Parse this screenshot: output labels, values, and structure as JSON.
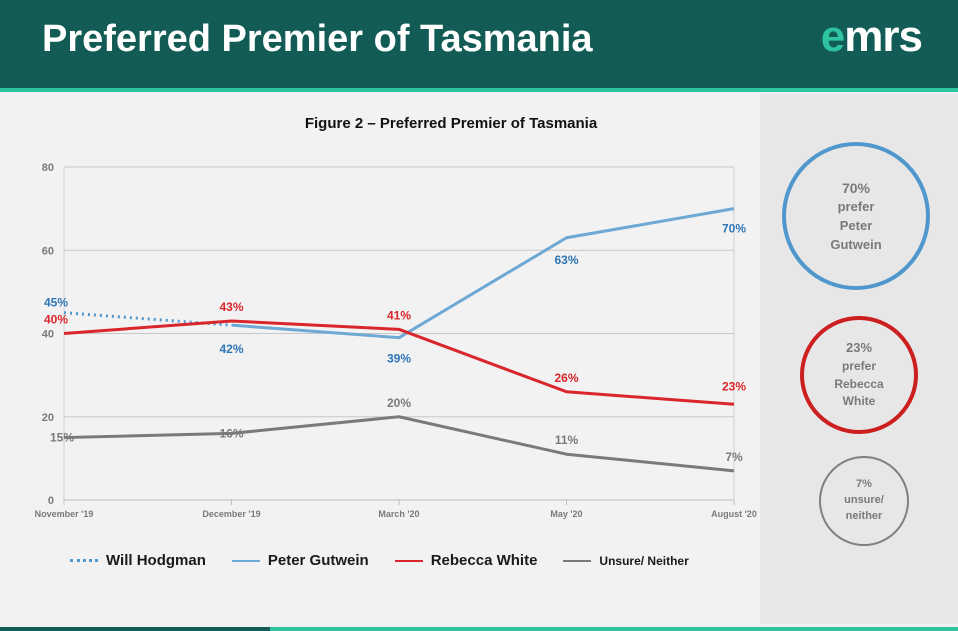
{
  "header": {
    "title": "Preferred Premier of Tasmania",
    "logo_prefix": "e",
    "logo_rest": "mrs"
  },
  "colors": {
    "header_bg": "#125c55",
    "accent": "#2ec4a0",
    "hodgman": "#4f97cd",
    "gutwein": "#6ea8d4",
    "white": "#d9262c",
    "unsure": "#7a7a7a"
  },
  "chart_data": {
    "type": "line",
    "title": "Figure 2 – Preferred Premier of Tasmania",
    "categories": [
      "November '19",
      "December '19",
      "March '20",
      "May '20",
      "August '20"
    ],
    "ylim": [
      0,
      80
    ],
    "yticks": [
      "0",
      "20",
      "40",
      "60",
      "80"
    ],
    "grid": true,
    "legend_position": "bottom",
    "series": [
      {
        "name": "Will Hodgman",
        "style": "dotted",
        "values": [
          45,
          42,
          null,
          null,
          null
        ],
        "labels": [
          "45%",
          "",
          "",
          "",
          ""
        ]
      },
      {
        "name": "Peter Gutwein",
        "style": "solid",
        "values": [
          null,
          42,
          39,
          63,
          70
        ],
        "labels": [
          "",
          "42%",
          "39%",
          "63%",
          "70%"
        ]
      },
      {
        "name": "Rebecca White",
        "style": "solid",
        "values": [
          40,
          43,
          41,
          26,
          23
        ],
        "labels": [
          "40%",
          "43%",
          "41%",
          "26%",
          "23%"
        ]
      },
      {
        "name": "Unsure/ Neither",
        "style": "solid",
        "values": [
          15,
          16,
          20,
          11,
          7
        ],
        "labels": [
          "15%",
          "16%",
          "20%",
          "11%",
          "7%"
        ]
      }
    ]
  },
  "callouts": [
    {
      "pct": "70%",
      "line1": "prefer",
      "line2": "Peter",
      "line3": "Gutwein"
    },
    {
      "pct": "23%",
      "line1": "prefer",
      "line2": "Rebecca",
      "line3": "White"
    },
    {
      "pct": "7%",
      "line1": "unsure/",
      "line2": "neither"
    }
  ]
}
